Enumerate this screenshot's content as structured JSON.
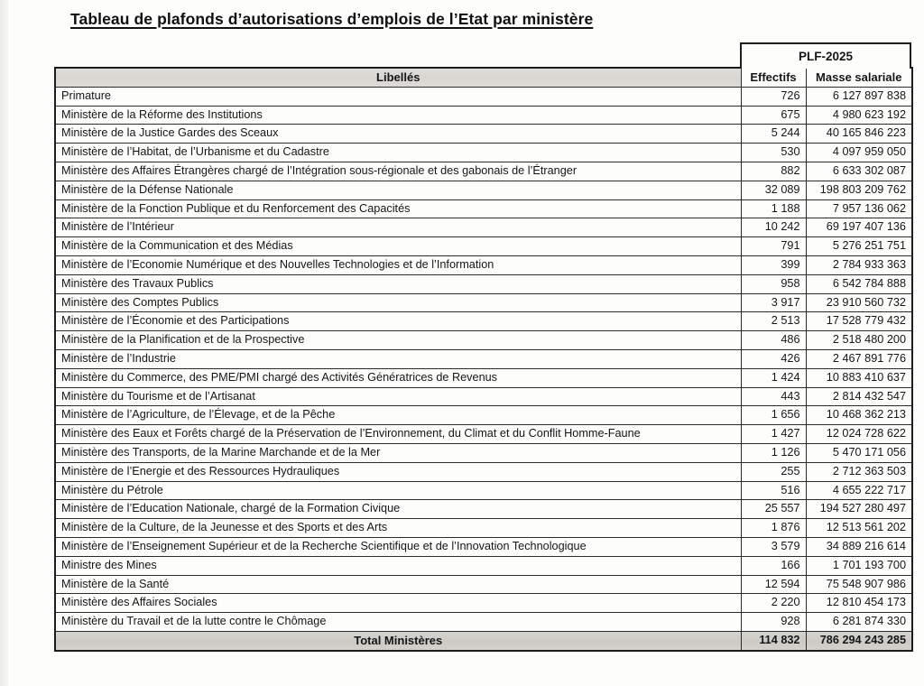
{
  "page": {
    "title": "Tableau de plafonds d’autorisations d’emplois de l’Etat par ministère"
  },
  "table": {
    "group_header": "PLF-2025",
    "columns": {
      "libelles": "Libellés",
      "effectifs": "Effectifs",
      "masse_salariale": "Masse salariale"
    },
    "rows": [
      {
        "label": "Primature",
        "effectifs": "726",
        "masse_salariale": "6 127 897 838"
      },
      {
        "label": "Ministère de la Réforme des Institutions",
        "effectifs": "675",
        "masse_salariale": "4 980 623 192"
      },
      {
        "label": "Ministère de la Justice Gardes des Sceaux",
        "effectifs": "5 244",
        "masse_salariale": "40 165 846 223"
      },
      {
        "label": "Ministère de l’Habitat, de l’Urbanisme et du Cadastre",
        "effectifs": "530",
        "masse_salariale": "4 097 959 050"
      },
      {
        "label": "Ministère des Affaires Étrangères chargé de l’Intégration sous-régionale et des gabonais de l’Étranger",
        "effectifs": "882",
        "masse_salariale": "6 633 302 087"
      },
      {
        "label": "Ministère de la Défense Nationale",
        "effectifs": "32 089",
        "masse_salariale": "198 803 209 762"
      },
      {
        "label": "Ministère de la Fonction Publique et du Renforcement des Capacités",
        "effectifs": "1 188",
        "masse_salariale": "7 957 136 062"
      },
      {
        "label": "Ministère de l’Intérieur",
        "effectifs": "10 242",
        "masse_salariale": "69 197 407 136"
      },
      {
        "label": "Ministère de la Communication et des Médias",
        "effectifs": "791",
        "masse_salariale": "5 276 251 751"
      },
      {
        "label": "Ministère de l’Economie Numérique et des Nouvelles Technologies et de l’Information",
        "effectifs": "399",
        "masse_salariale": "2 784 933 363"
      },
      {
        "label": "Ministère des Travaux Publics",
        "effectifs": "958",
        "masse_salariale": "6 542 784 888"
      },
      {
        "label": "Ministère des Comptes Publics",
        "effectifs": "3 917",
        "masse_salariale": "23 910 560 732"
      },
      {
        "label": "Ministère de l’Économie et des Participations",
        "effectifs": "2 513",
        "masse_salariale": "17 528 779 432"
      },
      {
        "label": "Ministère de la Planification et de la Prospective",
        "effectifs": "486",
        "masse_salariale": "2 518 480 200"
      },
      {
        "label": "Ministère de l’Industrie",
        "effectifs": "426",
        "masse_salariale": "2 467 891 776"
      },
      {
        "label": "Ministère du Commerce, des PME/PMI chargé des Activités Génératrices de Revenus",
        "effectifs": "1 424",
        "masse_salariale": "10 883 410 637"
      },
      {
        "label": "Ministère du Tourisme et de l’Artisanat",
        "effectifs": "443",
        "masse_salariale": "2 814 432 547"
      },
      {
        "label": "Ministère de l’Agriculture, de l’Élevage, et de la Pêche",
        "effectifs": "1 656",
        "masse_salariale": "10 468 362 213"
      },
      {
        "label": "Ministère des Eaux et Forêts chargé de la Préservation de l’Environnement, du Climat et du Conflit Homme-Faune",
        "effectifs": "1 427",
        "masse_salariale": "12 024 728 622"
      },
      {
        "label": "Ministère des Transports, de la Marine Marchande et de la Mer",
        "effectifs": "1 126",
        "masse_salariale": "5 470 171 056"
      },
      {
        "label": "Ministère de l’Energie et des Ressources Hydrauliques",
        "effectifs": "255",
        "masse_salariale": "2 712 363 503"
      },
      {
        "label": "Ministère du Pétrole",
        "effectifs": "516",
        "masse_salariale": "4 655 222 717"
      },
      {
        "label": "Ministère de l’Education Nationale, chargé de la Formation Civique",
        "effectifs": "25 557",
        "masse_salariale": "194 527 280 497"
      },
      {
        "label": "Ministère de la Culture, de la Jeunesse et des Sports et des Arts",
        "effectifs": "1 876",
        "masse_salariale": "12 513 561 202"
      },
      {
        "label": "Ministère de l’Enseignement Supérieur et de la Recherche Scientifique et de l’Innovation Technologique",
        "effectifs": "3 579",
        "masse_salariale": "34 889 216 614"
      },
      {
        "label": "Ministre des Mines",
        "effectifs": "166",
        "masse_salariale": "1 701 193 700"
      },
      {
        "label": "Ministère de la Santé",
        "effectifs": "12 594",
        "masse_salariale": "75 548 907 986"
      },
      {
        "label": "Ministère des Affaires Sociales",
        "effectifs": "2 220",
        "masse_salariale": "12 810 454 173"
      },
      {
        "label": "Ministère du Travail et de la lutte contre le Chômage",
        "effectifs": "928",
        "masse_salariale": "6 281 874 330"
      }
    ],
    "total": {
      "label": "Total Ministères",
      "effectifs": "114 832",
      "masse_salariale": "786 294 243 285"
    }
  },
  "colors": {
    "header_bg": "#d9d8d3",
    "total_bg": "#d0cfca",
    "border": "#1c1c1c",
    "page_bg": "#fdfdfc"
  }
}
